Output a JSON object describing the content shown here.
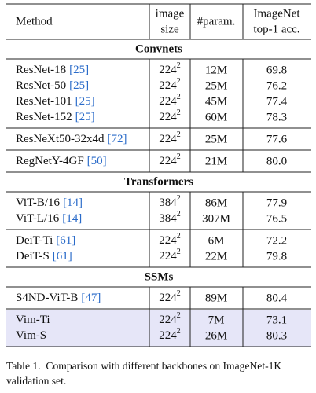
{
  "table": {
    "header": {
      "method": "Method",
      "size": [
        "image",
        "size"
      ],
      "params": "#param.",
      "acc": [
        "ImageNet",
        "top-1 acc."
      ]
    },
    "sections": [
      {
        "title": "Convnets",
        "groups": [
          {
            "rows": [
              {
                "method": "ResNet-18",
                "cite": "[25]",
                "size": {
                  "base": "224",
                  "sup": "2"
                },
                "params": "12M",
                "acc": "69.8"
              },
              {
                "method": "ResNet-50",
                "cite": "[25]",
                "size": {
                  "base": "224",
                  "sup": "2"
                },
                "params": "25M",
                "acc": "76.2"
              },
              {
                "method": "ResNet-101",
                "cite": "[25]",
                "size": {
                  "base": "224",
                  "sup": "2"
                },
                "params": "45M",
                "acc": "77.4"
              },
              {
                "method": "ResNet-152",
                "cite": "[25]",
                "size": {
                  "base": "224",
                  "sup": "2"
                },
                "params": "60M",
                "acc": "78.3"
              }
            ]
          },
          {
            "rows": [
              {
                "method": "ResNeXt50-32x4d",
                "cite": "[72]",
                "size": {
                  "base": "224",
                  "sup": "2"
                },
                "params": "25M",
                "acc": "77.6"
              }
            ]
          },
          {
            "rows": [
              {
                "method": "RegNetY-4GF",
                "cite": "[50]",
                "size": {
                  "base": "224",
                  "sup": "2"
                },
                "params": "21M",
                "acc": "80.0"
              }
            ]
          }
        ]
      },
      {
        "title": "Transformers",
        "groups": [
          {
            "rows": [
              {
                "method": "ViT-B/16",
                "cite": "[14]",
                "size": {
                  "base": "384",
                  "sup": "2"
                },
                "params": "86M",
                "acc": "77.9"
              },
              {
                "method": "ViT-L/16",
                "cite": "[14]",
                "size": {
                  "base": "384",
                  "sup": "2"
                },
                "params": "307M",
                "acc": "76.5"
              }
            ]
          },
          {
            "rows": [
              {
                "method": "DeiT-Ti",
                "cite": "[61]",
                "size": {
                  "base": "224",
                  "sup": "2"
                },
                "params": "6M",
                "acc": "72.2"
              },
              {
                "method": "DeiT-S",
                "cite": "[61]",
                "size": {
                  "base": "224",
                  "sup": "2"
                },
                "params": "22M",
                "acc": "79.8"
              }
            ]
          }
        ]
      },
      {
        "title": "SSMs",
        "groups": [
          {
            "rows": [
              {
                "method": "S4ND-ViT-B",
                "cite": "[47]",
                "size": {
                  "base": "224",
                  "sup": "2"
                },
                "params": "89M",
                "acc": "80.4"
              }
            ]
          },
          {
            "highlight": "#e6e6f8",
            "rows": [
              {
                "method": "Vim-Ti",
                "size": {
                  "base": "224",
                  "sup": "2"
                },
                "params": "7M",
                "acc": "73.1"
              },
              {
                "method": "Vim-S",
                "size": {
                  "base": "224",
                  "sup": "2"
                },
                "params": "26M",
                "acc": "80.3"
              }
            ]
          }
        ]
      }
    ],
    "caption": "Table 1.  Comparison with different backbones on ImageNet-1K validation set."
  }
}
